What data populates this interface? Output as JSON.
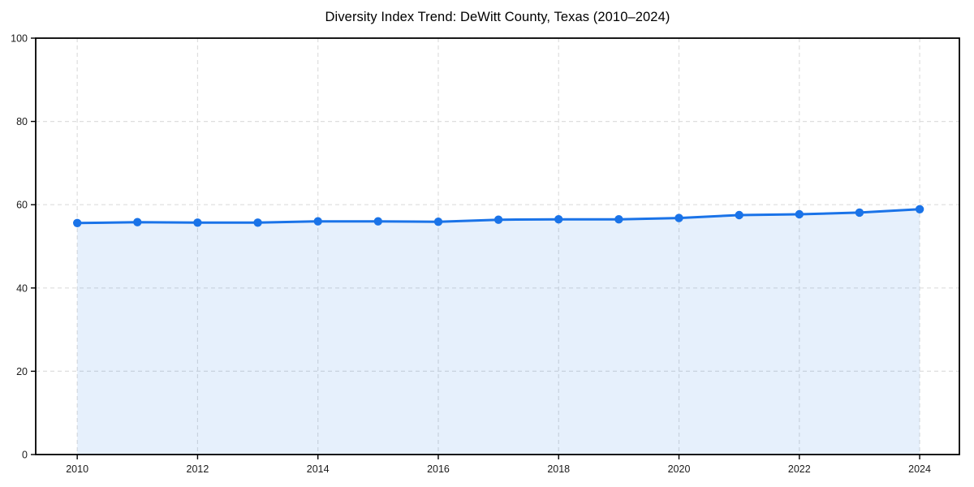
{
  "chart_data": {
    "type": "area",
    "title": "Diversity Index Trend: DeWitt County, Texas (2010–2024)",
    "xlabel": "",
    "ylabel": "",
    "x": [
      2010,
      2011,
      2012,
      2013,
      2014,
      2015,
      2016,
      2017,
      2018,
      2019,
      2020,
      2021,
      2022,
      2023,
      2024
    ],
    "series": [
      {
        "name": "Diversity Index",
        "values": [
          55.6,
          55.8,
          55.7,
          55.7,
          56.0,
          56.0,
          55.9,
          56.4,
          56.5,
          56.5,
          56.8,
          57.5,
          57.7,
          58.1,
          58.9
        ]
      }
    ],
    "xticks": [
      2010,
      2012,
      2014,
      2016,
      2018,
      2020,
      2022,
      2024
    ],
    "yticks": [
      0,
      20,
      40,
      60,
      80,
      100
    ],
    "xlim": [
      2009.31,
      2024.66
    ],
    "ylim": [
      0,
      100
    ],
    "grid": true,
    "grid_style": "dashed",
    "legend": "none",
    "colors": {
      "line": "#1a73e8",
      "marker": "#1a73e8",
      "fill": "rgba(26,115,232,0.11)",
      "gridline": "#dedede",
      "axis": "#000000",
      "tick_label": "#1a1a1a",
      "background": "#ffffff"
    }
  }
}
